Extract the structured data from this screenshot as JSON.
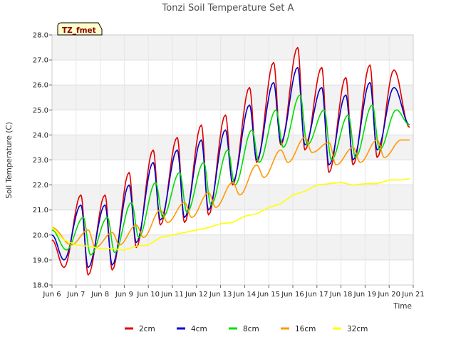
{
  "chart_data": {
    "type": "line",
    "title": "Tonzi Soil Temperature Set A",
    "xlabel": "Time",
    "ylabel": "Soil Temperature (C)",
    "site_tag": "TZ_fmet",
    "xlim": [
      6,
      21
    ],
    "ylim": [
      18.0,
      28.0
    ],
    "x_ticks": [
      6,
      7,
      8,
      9,
      10,
      11,
      12,
      13,
      14,
      15,
      16,
      17,
      18,
      19,
      20,
      21
    ],
    "x_tick_labels": [
      "Jun 6",
      "Jun 7",
      "Jun 8",
      "Jun 9",
      "Jun 10",
      "Jun 11",
      "Jun 12",
      "Jun 13",
      "Jun 14",
      "Jun 15",
      "Jun 16",
      "Jun 17",
      "Jun 18",
      "Jun 19",
      "Jun 20",
      "Jun 21"
    ],
    "y_ticks": [
      18.0,
      19.0,
      20.0,
      21.0,
      22.0,
      23.0,
      24.0,
      25.0,
      26.0,
      27.0,
      28.0
    ],
    "y_tick_labels": [
      "18.0",
      "19.0",
      "20.0",
      "21.0",
      "22.0",
      "23.0",
      "24.0",
      "25.0",
      "26.0",
      "27.0",
      "28.0"
    ],
    "grid": true,
    "legend_position": "bottom",
    "series": [
      {
        "name": "2cm",
        "color": "#e00000",
        "daily_min": [
          {
            "x": 6.5,
            "y": 18.7
          },
          {
            "x": 7.5,
            "y": 18.4
          },
          {
            "x": 8.5,
            "y": 18.6
          },
          {
            "x": 9.5,
            "y": 19.5
          },
          {
            "x": 10.5,
            "y": 20.4
          },
          {
            "x": 11.5,
            "y": 20.5
          },
          {
            "x": 12.5,
            "y": 20.8
          },
          {
            "x": 13.5,
            "y": 22.0
          },
          {
            "x": 14.5,
            "y": 22.9
          },
          {
            "x": 15.5,
            "y": 23.6
          },
          {
            "x": 16.5,
            "y": 23.4
          },
          {
            "x": 17.5,
            "y": 22.5
          },
          {
            "x": 18.5,
            "y": 22.8
          },
          {
            "x": 19.5,
            "y": 23.1
          }
        ],
        "daily_max": [
          {
            "x": 6.0,
            "y": 19.8
          },
          {
            "x": 7.2,
            "y": 21.6
          },
          {
            "x": 8.2,
            "y": 21.6
          },
          {
            "x": 9.2,
            "y": 22.5
          },
          {
            "x": 10.2,
            "y": 23.4
          },
          {
            "x": 11.2,
            "y": 23.9
          },
          {
            "x": 12.2,
            "y": 24.4
          },
          {
            "x": 13.2,
            "y": 24.8
          },
          {
            "x": 14.2,
            "y": 25.9
          },
          {
            "x": 15.2,
            "y": 26.9
          },
          {
            "x": 16.2,
            "y": 27.5
          },
          {
            "x": 17.2,
            "y": 26.7
          },
          {
            "x": 18.2,
            "y": 26.3
          },
          {
            "x": 19.2,
            "y": 26.8
          },
          {
            "x": 20.2,
            "y": 26.6
          }
        ],
        "end": {
          "x": 20.85,
          "y": 24.3
        }
      },
      {
        "name": "4cm",
        "color": "#0000cc",
        "daily_min": [
          {
            "x": 6.5,
            "y": 19.0
          },
          {
            "x": 7.5,
            "y": 18.7
          },
          {
            "x": 8.5,
            "y": 18.8
          },
          {
            "x": 9.5,
            "y": 19.7
          },
          {
            "x": 10.5,
            "y": 20.6
          },
          {
            "x": 11.5,
            "y": 20.7
          },
          {
            "x": 12.5,
            "y": 21.0
          },
          {
            "x": 13.5,
            "y": 22.1
          },
          {
            "x": 14.5,
            "y": 23.0
          },
          {
            "x": 15.5,
            "y": 23.7
          },
          {
            "x": 16.5,
            "y": 23.6
          },
          {
            "x": 17.5,
            "y": 22.8
          },
          {
            "x": 18.5,
            "y": 23.0
          },
          {
            "x": 19.5,
            "y": 23.4
          }
        ],
        "daily_max": [
          {
            "x": 6.0,
            "y": 20.0
          },
          {
            "x": 7.2,
            "y": 21.2
          },
          {
            "x": 8.2,
            "y": 21.2
          },
          {
            "x": 9.2,
            "y": 22.0
          },
          {
            "x": 10.2,
            "y": 22.9
          },
          {
            "x": 11.2,
            "y": 23.4
          },
          {
            "x": 12.2,
            "y": 23.8
          },
          {
            "x": 13.2,
            "y": 24.2
          },
          {
            "x": 14.2,
            "y": 25.2
          },
          {
            "x": 15.2,
            "y": 26.1
          },
          {
            "x": 16.2,
            "y": 26.7
          },
          {
            "x": 17.2,
            "y": 25.9
          },
          {
            "x": 18.2,
            "y": 25.6
          },
          {
            "x": 19.2,
            "y": 26.1
          },
          {
            "x": 20.2,
            "y": 25.9
          }
        ],
        "end": {
          "x": 20.85,
          "y": 24.4
        }
      },
      {
        "name": "8cm",
        "color": "#00dd00",
        "daily_min": [
          {
            "x": 6.6,
            "y": 19.4
          },
          {
            "x": 7.6,
            "y": 19.2
          },
          {
            "x": 8.6,
            "y": 19.3
          },
          {
            "x": 9.6,
            "y": 19.9
          },
          {
            "x": 10.6,
            "y": 20.7
          },
          {
            "x": 11.6,
            "y": 20.9
          },
          {
            "x": 12.6,
            "y": 21.2
          },
          {
            "x": 13.6,
            "y": 22.0
          },
          {
            "x": 14.6,
            "y": 22.9
          },
          {
            "x": 15.6,
            "y": 23.5
          },
          {
            "x": 16.6,
            "y": 23.6
          },
          {
            "x": 17.6,
            "y": 23.0
          },
          {
            "x": 18.6,
            "y": 23.1
          },
          {
            "x": 19.6,
            "y": 23.4
          }
        ],
        "daily_max": [
          {
            "x": 6.0,
            "y": 20.2
          },
          {
            "x": 7.3,
            "y": 20.7
          },
          {
            "x": 8.3,
            "y": 20.7
          },
          {
            "x": 9.3,
            "y": 21.3
          },
          {
            "x": 10.3,
            "y": 22.1
          },
          {
            "x": 11.3,
            "y": 22.5
          },
          {
            "x": 12.3,
            "y": 22.9
          },
          {
            "x": 13.3,
            "y": 23.4
          },
          {
            "x": 14.3,
            "y": 24.2
          },
          {
            "x": 15.3,
            "y": 25.0
          },
          {
            "x": 16.3,
            "y": 25.6
          },
          {
            "x": 17.3,
            "y": 25.0
          },
          {
            "x": 18.3,
            "y": 24.8
          },
          {
            "x": 19.3,
            "y": 25.2
          },
          {
            "x": 20.3,
            "y": 25.0
          }
        ],
        "end": {
          "x": 20.85,
          "y": 24.4
        }
      },
      {
        "name": "16cm",
        "color": "#ff9900",
        "daily_min": [
          {
            "x": 6.8,
            "y": 19.6
          },
          {
            "x": 7.8,
            "y": 19.5
          },
          {
            "x": 8.8,
            "y": 19.6
          },
          {
            "x": 9.8,
            "y": 19.9
          },
          {
            "x": 10.8,
            "y": 20.5
          },
          {
            "x": 11.8,
            "y": 20.7
          },
          {
            "x": 12.8,
            "y": 21.1
          },
          {
            "x": 13.8,
            "y": 21.6
          },
          {
            "x": 14.8,
            "y": 22.3
          },
          {
            "x": 15.8,
            "y": 22.9
          },
          {
            "x": 16.8,
            "y": 23.3
          },
          {
            "x": 17.8,
            "y": 22.8
          },
          {
            "x": 18.8,
            "y": 22.9
          },
          {
            "x": 19.8,
            "y": 23.1
          }
        ],
        "daily_max": [
          {
            "x": 6.0,
            "y": 20.3
          },
          {
            "x": 7.5,
            "y": 20.2
          },
          {
            "x": 8.5,
            "y": 20.1
          },
          {
            "x": 9.5,
            "y": 20.4
          },
          {
            "x": 10.5,
            "y": 21.0
          },
          {
            "x": 11.5,
            "y": 21.3
          },
          {
            "x": 12.5,
            "y": 21.7
          },
          {
            "x": 13.5,
            "y": 22.1
          },
          {
            "x": 14.5,
            "y": 22.8
          },
          {
            "x": 15.5,
            "y": 23.4
          },
          {
            "x": 16.5,
            "y": 23.9
          },
          {
            "x": 17.5,
            "y": 23.7
          },
          {
            "x": 18.5,
            "y": 23.5
          },
          {
            "x": 19.5,
            "y": 23.8
          },
          {
            "x": 20.5,
            "y": 23.8
          }
        ],
        "end": {
          "x": 20.85,
          "y": 23.8
        }
      },
      {
        "name": "32cm",
        "color": "#ffff00",
        "points": [
          {
            "x": 6.0,
            "y": 20.3
          },
          {
            "x": 6.5,
            "y": 19.8
          },
          {
            "x": 7.0,
            "y": 19.6
          },
          {
            "x": 7.5,
            "y": 19.55
          },
          {
            "x": 8.0,
            "y": 19.45
          },
          {
            "x": 8.5,
            "y": 19.45
          },
          {
            "x": 9.0,
            "y": 19.4
          },
          {
            "x": 9.5,
            "y": 19.55
          },
          {
            "x": 10.0,
            "y": 19.6
          },
          {
            "x": 10.5,
            "y": 19.9
          },
          {
            "x": 11.0,
            "y": 20.0
          },
          {
            "x": 11.5,
            "y": 20.1
          },
          {
            "x": 12.0,
            "y": 20.2
          },
          {
            "x": 12.5,
            "y": 20.3
          },
          {
            "x": 13.0,
            "y": 20.45
          },
          {
            "x": 13.5,
            "y": 20.5
          },
          {
            "x": 14.0,
            "y": 20.75
          },
          {
            "x": 14.5,
            "y": 20.85
          },
          {
            "x": 15.0,
            "y": 21.1
          },
          {
            "x": 15.5,
            "y": 21.25
          },
          {
            "x": 16.0,
            "y": 21.6
          },
          {
            "x": 16.5,
            "y": 21.75
          },
          {
            "x": 17.0,
            "y": 22.0
          },
          {
            "x": 17.5,
            "y": 22.05
          },
          {
            "x": 18.0,
            "y": 22.1
          },
          {
            "x": 18.5,
            "y": 22.0
          },
          {
            "x": 19.0,
            "y": 22.05
          },
          {
            "x": 19.5,
            "y": 22.05
          },
          {
            "x": 20.0,
            "y": 22.2
          },
          {
            "x": 20.5,
            "y": 22.2
          },
          {
            "x": 20.85,
            "y": 22.25
          }
        ]
      }
    ]
  }
}
